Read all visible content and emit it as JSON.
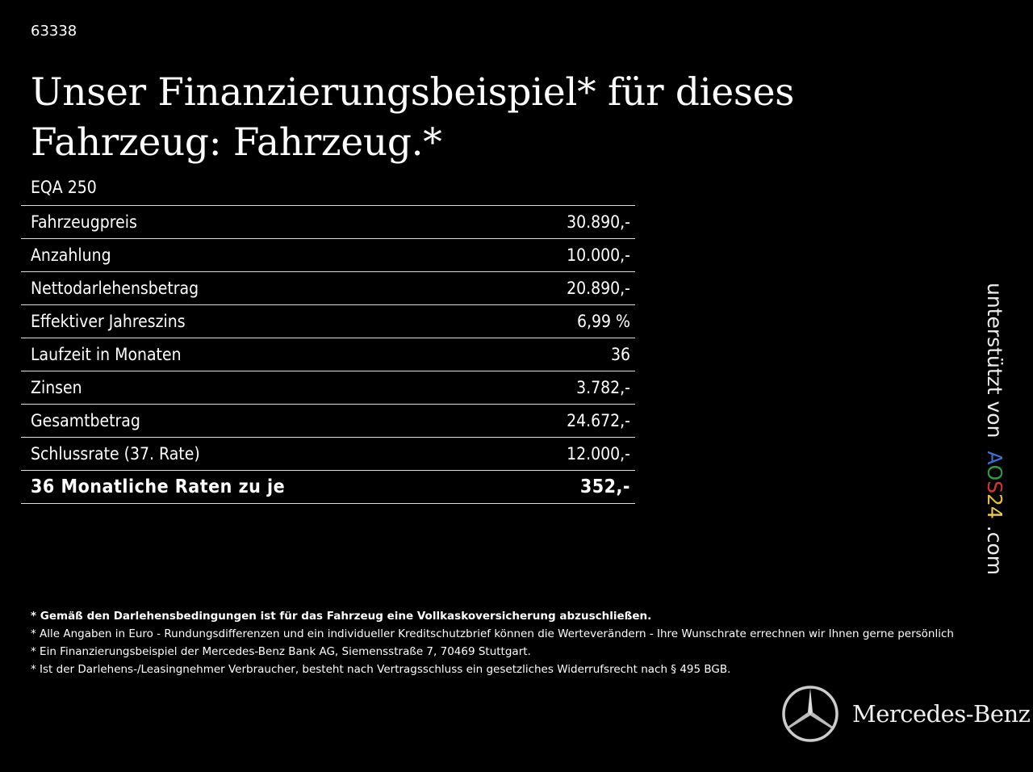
{
  "listing_id": "63338",
  "title": "Unser Finanzierungsbeispiel* für dieses Fahrzeug: Fahrzeug.*",
  "model": "EQA 250",
  "rows": [
    {
      "label": "Fahrzeugpreis",
      "value": "30.890,-"
    },
    {
      "label": "Anzahlung",
      "value": "10.000,-"
    },
    {
      "label": "Nettodarlehensbetrag",
      "value": "20.890,-"
    },
    {
      "label": "Effektiver Jahreszins",
      "value": "6,99 %"
    },
    {
      "label": "Laufzeit in Monaten",
      "value": "36"
    },
    {
      "label": "Zinsen",
      "value": "3.782,-"
    },
    {
      "label": "Gesamtbetrag",
      "value": "24.672,-"
    },
    {
      "label": "Schlussrate (37. Rate)",
      "value": "12.000,-"
    }
  ],
  "total": {
    "label": "36 Monatliche Raten zu je",
    "value": "352,-"
  },
  "side": {
    "prefix": "unterstützt von",
    "brand": [
      "A",
      "O",
      "S",
      "2",
      "4"
    ],
    "suffix": ".com"
  },
  "notes": [
    "* Gemäß den Darlehensbedingungen ist für das Fahrzeug eine Vollkaskoversicherung abzuschließen.",
    "* Alle Angaben in Euro - Rundungsdifferenzen und ein individueller Kreditschutzbrief können die Werteverändern - Ihre Wunschrate errechnen wir Ihnen gerne persönlich",
    "* Ein Finanzierungsbeispiel der Mercedes-Benz Bank AG, Siemensstraße 7, 70469 Stuttgart.",
    "* Ist der Darlehens-/Leasingnehmer Verbraucher, besteht nach Vertragsschluss ein gesetzliches Widerrufsrecht nach § 495 BGB."
  ],
  "logo": {
    "text": "Mercedes-Benz",
    "icon": "mercedes-star-icon"
  }
}
